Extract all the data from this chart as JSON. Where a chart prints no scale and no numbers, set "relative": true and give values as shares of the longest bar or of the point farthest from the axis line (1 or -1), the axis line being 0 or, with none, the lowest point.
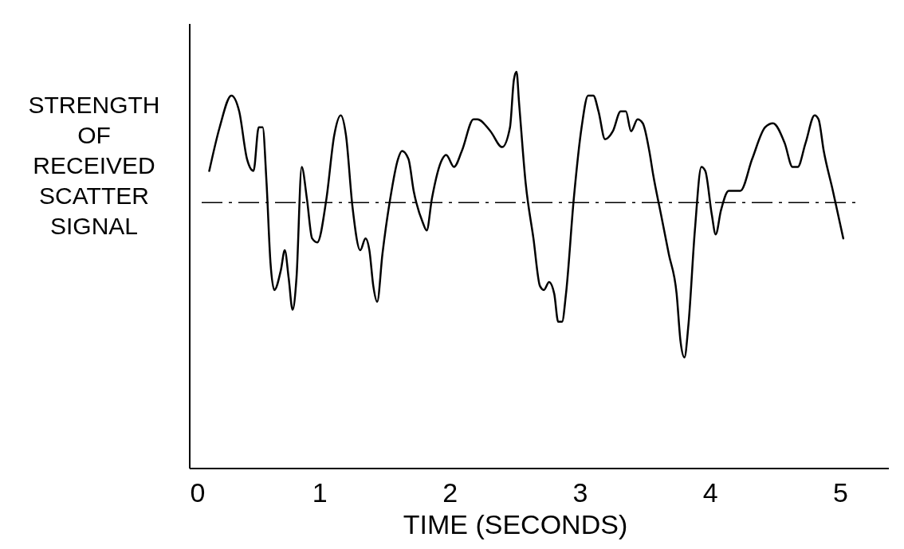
{
  "chart_data": {
    "type": "line",
    "relative": true,
    "xlabel": "TIME (SECONDS)",
    "ylabel": "STRENGTH OF RECEIVED SCATTER SIGNAL",
    "xlim": [
      0,
      5.37
    ],
    "xticks": [
      0,
      1,
      2,
      3,
      4,
      5
    ],
    "grid": false,
    "marker": "none",
    "line_style": "solid",
    "ref_lines": [
      {
        "axis": "y",
        "value": 0.67,
        "color": "#000000",
        "line_style": "dashdot"
      }
    ],
    "series": [
      {
        "color": "#000000",
        "x": [
          0.15,
          0.23,
          0.32,
          0.38,
          0.44,
          0.49,
          0.53,
          0.56,
          0.59,
          0.62,
          0.65,
          0.7,
          0.73,
          0.76,
          0.79,
          0.82,
          0.86,
          0.9,
          0.94,
          0.98,
          1.05,
          1.11,
          1.16,
          1.2,
          1.25,
          1.31,
          1.35,
          1.38,
          1.41,
          1.44,
          1.48,
          1.54,
          1.6,
          1.63,
          1.68,
          1.72,
          1.79,
          1.82,
          1.86,
          1.94,
          1.97,
          2.03,
          2.09,
          2.18,
          2.21,
          2.31,
          2.4,
          2.46,
          2.49,
          2.51,
          2.53,
          2.58,
          2.64,
          2.69,
          2.72,
          2.76,
          2.8,
          2.83,
          2.86,
          2.89,
          2.95,
          3.01,
          3.06,
          3.1,
          3.14,
          3.19,
          3.25,
          3.31,
          3.35,
          3.39,
          3.44,
          3.48,
          3.53,
          3.56,
          3.62,
          3.68,
          3.74,
          3.77,
          3.8,
          3.83,
          3.88,
          3.93,
          3.96,
          4.01,
          4.04,
          4.08,
          4.14,
          4.17,
          4.23,
          4.32,
          4.42,
          4.48,
          4.57,
          4.63,
          4.67,
          4.73,
          4.8,
          4.83,
          4.87,
          4.94,
          5.02
        ],
        "values": [
          0.75,
          0.86,
          0.94,
          0.9,
          0.78,
          0.75,
          0.86,
          0.86,
          0.72,
          0.52,
          0.45,
          0.5,
          0.55,
          0.48,
          0.4,
          0.48,
          0.76,
          0.68,
          0.58,
          0.57,
          0.68,
          0.84,
          0.89,
          0.84,
          0.66,
          0.55,
          0.58,
          0.55,
          0.46,
          0.42,
          0.54,
          0.68,
          0.78,
          0.8,
          0.78,
          0.7,
          0.62,
          0.6,
          0.68,
          0.78,
          0.79,
          0.76,
          0.8,
          0.88,
          0.88,
          0.85,
          0.81,
          0.86,
          0.98,
          1.0,
          0.92,
          0.72,
          0.58,
          0.46,
          0.45,
          0.47,
          0.44,
          0.37,
          0.37,
          0.44,
          0.68,
          0.86,
          0.94,
          0.94,
          0.9,
          0.83,
          0.85,
          0.9,
          0.9,
          0.85,
          0.88,
          0.87,
          0.8,
          0.74,
          0.64,
          0.54,
          0.44,
          0.32,
          0.28,
          0.36,
          0.6,
          0.76,
          0.75,
          0.64,
          0.59,
          0.65,
          0.7,
          0.7,
          0.7,
          0.78,
          0.86,
          0.87,
          0.82,
          0.76,
          0.76,
          0.82,
          0.89,
          0.88,
          0.8,
          0.7,
          0.58
        ]
      }
    ]
  }
}
